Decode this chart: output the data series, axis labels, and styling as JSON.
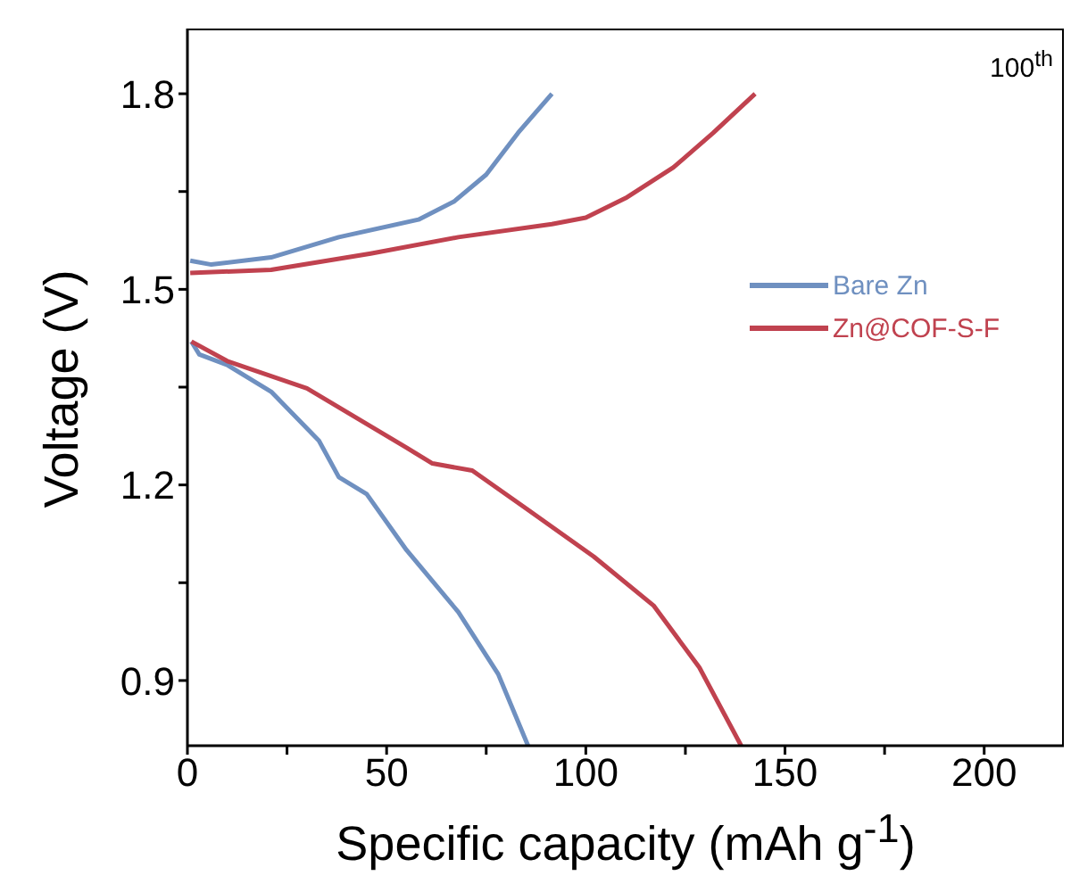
{
  "chart_data": {
    "type": "line",
    "xlabel": "Specific capacity (mAh g$^{-1}$)",
    "ylabel": "Voltage (V)",
    "annotations": [
      "100$^{th}$"
    ],
    "xlim": [
      0,
      220
    ],
    "xticks": [
      0,
      {
        "value": 25,
        "label": null
      },
      50,
      {
        "value": 75,
        "label": null
      },
      100,
      {
        "value": 125,
        "label": null
      },
      150,
      {
        "value": 175,
        "label": null
      },
      200
    ],
    "ylim": [
      0.8,
      1.9
    ],
    "yticks": [
      0.9,
      {
        "value": 1.05,
        "label": null
      },
      1.2,
      {
        "value": 1.35,
        "label": null
      },
      1.5,
      {
        "value": 1.65,
        "label": null
      },
      1.8
    ],
    "grid": false,
    "legend": "right",
    "marker": "none",
    "line_style": "solid",
    "series": [
      {
        "name": "Bare Zn",
        "color": "#6f90c0",
        "x": [
          0.7,
          6,
          21,
          38,
          58,
          67,
          75,
          83,
          91.5
        ],
        "values": [
          1.544,
          1.538,
          1.549,
          1.58,
          1.607,
          1.635,
          1.676,
          1.74,
          1.8
        ]
      },
      {
        "color": "#6f90c0",
        "x": [
          1,
          3,
          10,
          21,
          33,
          38,
          45,
          55,
          68,
          78,
          85.5
        ],
        "values": [
          1.42,
          1.4,
          1.384,
          1.343,
          1.268,
          1.212,
          1.186,
          1.1,
          1.005,
          0.91,
          0.8
        ]
      },
      {
        "name": "Zn@COF-S-F",
        "color": "#c0424f",
        "x": [
          0.7,
          21,
          46,
          68,
          91.5,
          100,
          110,
          122,
          132,
          142.5
        ],
        "values": [
          1.525,
          1.53,
          1.555,
          1.58,
          1.6,
          1.61,
          1.64,
          1.687,
          1.74,
          1.8
        ]
      },
      {
        "color": "#c0424f",
        "x": [
          1,
          10,
          30,
          55,
          61.5,
          71.5,
          85,
          102,
          117,
          128.5,
          139
        ],
        "values": [
          1.42,
          1.39,
          1.348,
          1.257,
          1.233,
          1.222,
          1.164,
          1.09,
          1.015,
          0.92,
          0.8
        ]
      }
    ]
  }
}
